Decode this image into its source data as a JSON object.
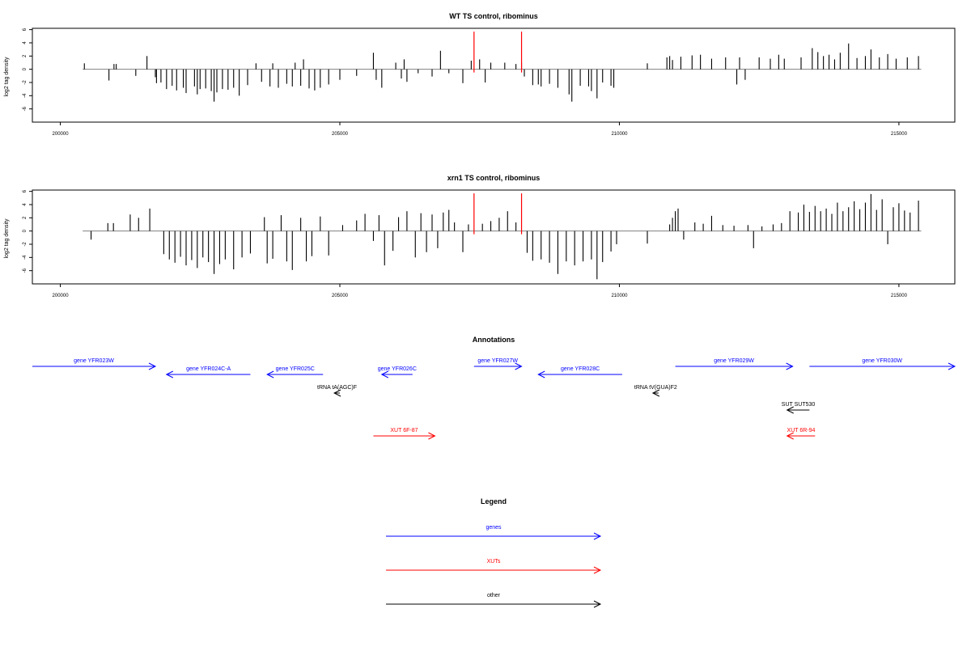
{
  "chart_data": [
    {
      "type": "bar",
      "title": "WT TS control, ribominus",
      "xlabel": "",
      "ylabel": "log2 tag density",
      "xlim": [
        199500,
        216000
      ],
      "ylim": [
        -8,
        6.2
      ],
      "xticks": [
        200000,
        205000,
        210000,
        215000
      ],
      "yticks": [
        -6,
        -4,
        -2,
        0,
        2,
        4,
        6
      ],
      "baseline_range": [
        200400,
        215400
      ],
      "highlights": [
        {
          "x": 207400,
          "value": 5.7,
          "color": "#ff0000"
        },
        {
          "x": 208250,
          "value": 5.7,
          "color": "#ff0000"
        }
      ],
      "series": [
        {
          "color": "#000000",
          "points": [
            [
              200430,
              0.9
            ],
            [
              200870,
              -1.7
            ],
            [
              200960,
              0.8
            ],
            [
              201000,
              0.8
            ],
            [
              201350,
              -1.0
            ],
            [
              201550,
              2.0
            ],
            [
              201700,
              -1.2
            ],
            [
              201720,
              -2.1
            ],
            [
              201800,
              -2.0
            ],
            [
              201900,
              -3.0
            ],
            [
              202000,
              -2.5
            ],
            [
              202080,
              -3.2
            ],
            [
              202200,
              -2.8
            ],
            [
              202250,
              -3.6
            ],
            [
              202400,
              -2.6
            ],
            [
              202450,
              -3.8
            ],
            [
              202500,
              -3.0
            ],
            [
              202600,
              -2.9
            ],
            [
              202700,
              -3.3
            ],
            [
              202750,
              -4.9
            ],
            [
              202800,
              -3.5
            ],
            [
              202900,
              -3.0
            ],
            [
              203000,
              -3.1
            ],
            [
              203100,
              -2.8
            ],
            [
              203200,
              -4.0
            ],
            [
              203350,
              -2.4
            ],
            [
              203500,
              0.9
            ],
            [
              203600,
              -1.9
            ],
            [
              203750,
              -2.6
            ],
            [
              203800,
              0.9
            ],
            [
              203900,
              -2.8
            ],
            [
              204050,
              -2.2
            ],
            [
              204150,
              -2.6
            ],
            [
              204200,
              1.0
            ],
            [
              204300,
              -2.5
            ],
            [
              204350,
              1.5
            ],
            [
              204450,
              -2.9
            ],
            [
              204550,
              -3.2
            ],
            [
              204650,
              -2.8
            ],
            [
              204800,
              -2.3
            ],
            [
              205000,
              -1.6
            ],
            [
              205300,
              -1.0
            ],
            [
              205600,
              2.5
            ],
            [
              205650,
              -1.6
            ],
            [
              205750,
              -2.8
            ],
            [
              206000,
              1.0
            ],
            [
              206100,
              -1.4
            ],
            [
              206150,
              1.5
            ],
            [
              206200,
              -1.9
            ],
            [
              206400,
              -0.6
            ],
            [
              206650,
              -1.1
            ],
            [
              206800,
              2.8
            ],
            [
              206950,
              -0.6
            ],
            [
              207200,
              -2.1
            ],
            [
              207350,
              1.3
            ],
            [
              207500,
              1.5
            ],
            [
              207600,
              -2.0
            ],
            [
              207700,
              1.0
            ],
            [
              207950,
              1.0
            ],
            [
              208150,
              0.8
            ],
            [
              208250,
              1.0
            ],
            [
              208300,
              -1.1
            ],
            [
              208450,
              -2.4
            ],
            [
              208550,
              -2.3
            ],
            [
              208600,
              -2.6
            ],
            [
              208750,
              -2.2
            ],
            [
              208900,
              -2.8
            ],
            [
              209100,
              -3.8
            ],
            [
              209150,
              -4.9
            ],
            [
              209300,
              -2.5
            ],
            [
              209450,
              -2.6
            ],
            [
              209500,
              -3.3
            ],
            [
              209600,
              -4.4
            ],
            [
              209700,
              -2.0
            ],
            [
              209850,
              -2.5
            ],
            [
              209900,
              -2.8
            ],
            [
              210500,
              0.9
            ],
            [
              210850,
              1.8
            ],
            [
              210900,
              2.0
            ],
            [
              210950,
              1.4
            ],
            [
              211100,
              1.9
            ],
            [
              211300,
              2.1
            ],
            [
              211450,
              2.2
            ],
            [
              211650,
              1.6
            ],
            [
              211900,
              1.8
            ],
            [
              212100,
              -2.3
            ],
            [
              212150,
              1.8
            ],
            [
              212250,
              -1.6
            ],
            [
              212500,
              1.8
            ],
            [
              212700,
              1.6
            ],
            [
              212850,
              2.2
            ],
            [
              212950,
              1.6
            ],
            [
              213250,
              1.8
            ],
            [
              213450,
              3.2
            ],
            [
              213550,
              2.6
            ],
            [
              213650,
              2.0
            ],
            [
              213750,
              2.2
            ],
            [
              213850,
              1.5
            ],
            [
              213950,
              2.5
            ],
            [
              214100,
              3.9
            ],
            [
              214250,
              1.7
            ],
            [
              214400,
              2.0
            ],
            [
              214500,
              3.0
            ],
            [
              214650,
              1.8
            ],
            [
              214800,
              2.3
            ],
            [
              214950,
              1.6
            ],
            [
              215150,
              1.8
            ],
            [
              215350,
              2.0
            ]
          ]
        }
      ]
    },
    {
      "type": "bar",
      "title": "xrn1 TS control, ribominus",
      "xlabel": "",
      "ylabel": "log2 tag density",
      "xlim": [
        199500,
        216000
      ],
      "ylim": [
        -8,
        6.2
      ],
      "xticks": [
        200000,
        205000,
        210000,
        215000
      ],
      "yticks": [
        -6,
        -4,
        -2,
        0,
        2,
        4,
        6
      ],
      "baseline_range": [
        200400,
        215400
      ],
      "highlights": [
        {
          "x": 207400,
          "value": 5.7,
          "color": "#ff0000"
        },
        {
          "x": 208250,
          "value": 5.7,
          "color": "#ff0000"
        }
      ],
      "series": [
        {
          "color": "#000000",
          "points": [
            [
              200550,
              -1.3
            ],
            [
              200850,
              1.2
            ],
            [
              200950,
              1.2
            ],
            [
              201250,
              2.5
            ],
            [
              201400,
              2.0
            ],
            [
              201600,
              3.4
            ],
            [
              201850,
              -3.5
            ],
            [
              201950,
              -4.3
            ],
            [
              202050,
              -4.8
            ],
            [
              202150,
              -3.9
            ],
            [
              202250,
              -5.2
            ],
            [
              202350,
              -4.4
            ],
            [
              202450,
              -5.6
            ],
            [
              202550,
              -4.0
            ],
            [
              202650,
              -4.7
            ],
            [
              202750,
              -6.5
            ],
            [
              202850,
              -5.0
            ],
            [
              202950,
              -4.3
            ],
            [
              203100,
              -5.8
            ],
            [
              203250,
              -4.0
            ],
            [
              203400,
              -3.4
            ],
            [
              203650,
              2.1
            ],
            [
              203700,
              -4.9
            ],
            [
              203800,
              -4.2
            ],
            [
              203950,
              2.4
            ],
            [
              204050,
              -4.6
            ],
            [
              204150,
              -5.9
            ],
            [
              204300,
              2.0
            ],
            [
              204400,
              -4.6
            ],
            [
              204500,
              -3.8
            ],
            [
              204650,
              2.2
            ],
            [
              204800,
              -3.7
            ],
            [
              205050,
              0.9
            ],
            [
              205300,
              1.6
            ],
            [
              205450,
              2.6
            ],
            [
              205600,
              -1.5
            ],
            [
              205700,
              2.4
            ],
            [
              205800,
              -5.2
            ],
            [
              205950,
              -3.0
            ],
            [
              206050,
              2.1
            ],
            [
              206200,
              3.0
            ],
            [
              206350,
              -4.0
            ],
            [
              206450,
              2.7
            ],
            [
              206550,
              -3.2
            ],
            [
              206650,
              2.5
            ],
            [
              206750,
              -2.6
            ],
            [
              206850,
              2.8
            ],
            [
              206950,
              3.2
            ],
            [
              207050,
              1.3
            ],
            [
              207200,
              -3.2
            ],
            [
              207300,
              1.0
            ],
            [
              207550,
              1.1
            ],
            [
              207700,
              1.5
            ],
            [
              207850,
              2.0
            ],
            [
              208000,
              3.0
            ],
            [
              208150,
              1.3
            ],
            [
              208350,
              -3.3
            ],
            [
              208450,
              -4.5
            ],
            [
              208600,
              -4.3
            ],
            [
              208750,
              -4.8
            ],
            [
              208900,
              -6.5
            ],
            [
              209050,
              -4.6
            ],
            [
              209200,
              -5.2
            ],
            [
              209350,
              -4.6
            ],
            [
              209500,
              -4.3
            ],
            [
              209600,
              -7.3
            ],
            [
              209700,
              -4.7
            ],
            [
              209850,
              -3.1
            ],
            [
              209950,
              -2.0
            ],
            [
              210500,
              -1.9
            ],
            [
              210900,
              1.0
            ],
            [
              210950,
              2.0
            ],
            [
              211000,
              3.0
            ],
            [
              211050,
              3.4
            ],
            [
              211150,
              -1.3
            ],
            [
              211350,
              1.3
            ],
            [
              211500,
              1.1
            ],
            [
              211650,
              2.3
            ],
            [
              211850,
              0.9
            ],
            [
              212050,
              0.8
            ],
            [
              212300,
              0.9
            ],
            [
              212400,
              -2.6
            ],
            [
              212550,
              0.7
            ],
            [
              212750,
              1.0
            ],
            [
              212900,
              1.2
            ],
            [
              213050,
              3.0
            ],
            [
              213200,
              2.8
            ],
            [
              213300,
              4.0
            ],
            [
              213400,
              2.9
            ],
            [
              213500,
              3.8
            ],
            [
              213600,
              3.0
            ],
            [
              213700,
              3.4
            ],
            [
              213800,
              2.6
            ],
            [
              213900,
              4.3
            ],
            [
              214000,
              3.0
            ],
            [
              214100,
              3.6
            ],
            [
              214200,
              4.5
            ],
            [
              214300,
              3.3
            ],
            [
              214400,
              4.3
            ],
            [
              214500,
              5.6
            ],
            [
              214600,
              3.2
            ],
            [
              214700,
              4.8
            ],
            [
              214800,
              -2.0
            ],
            [
              214900,
              3.6
            ],
            [
              215000,
              4.2
            ],
            [
              215100,
              3.1
            ],
            [
              215200,
              2.8
            ],
            [
              215350,
              4.6
            ]
          ]
        }
      ]
    }
  ],
  "annotations": {
    "title": "Annotations",
    "xlim": [
      199500,
      216000
    ],
    "features": [
      {
        "label": "gene YFR023W",
        "start": 199500,
        "end": 201700,
        "strand": "+",
        "row": 0,
        "category": "gene"
      },
      {
        "label": "gene YFR024C-A",
        "start": 201900,
        "end": 203400,
        "strand": "-",
        "row": 1,
        "category": "gene"
      },
      {
        "label": "gene YFR025C",
        "start": 203700,
        "end": 204700,
        "strand": "-",
        "row": 1,
        "category": "gene"
      },
      {
        "label": "gene YFR026C",
        "start": 205750,
        "end": 206300,
        "strand": "-",
        "row": 1,
        "category": "gene"
      },
      {
        "label": "gene YFR027W",
        "start": 207400,
        "end": 208250,
        "strand": "+",
        "row": 0,
        "category": "gene"
      },
      {
        "label": "gene YFR028C",
        "start": 208550,
        "end": 210050,
        "strand": "-",
        "row": 1,
        "category": "gene"
      },
      {
        "label": "gene YFR029W",
        "start": 211000,
        "end": 213100,
        "strand": "+",
        "row": 0,
        "category": "gene"
      },
      {
        "label": "gene YFR030W",
        "start": 213400,
        "end": 216000,
        "strand": "+",
        "row": 0,
        "category": "gene"
      },
      {
        "label": "tRNA tA(AGC)F",
        "start": 204900,
        "end": 205000,
        "strand": "-",
        "row": 2,
        "category": "other"
      },
      {
        "label": "tRNA tV(GUA)F2",
        "start": 210600,
        "end": 210700,
        "strand": "-",
        "row": 2,
        "category": "other"
      },
      {
        "label": "SUT SUT530",
        "start": 213000,
        "end": 213400,
        "strand": "-",
        "row": 3,
        "category": "other"
      },
      {
        "label": "XUT 6F-87",
        "start": 205600,
        "end": 206700,
        "strand": "+",
        "row": 4,
        "category": "xut"
      },
      {
        "label": "XUT 6R-94",
        "start": 213000,
        "end": 213500,
        "strand": "-",
        "row": 4,
        "category": "xut"
      }
    ]
  },
  "legend": {
    "title": "Legend",
    "items": [
      {
        "label": "genes",
        "color": "#0000ff"
      },
      {
        "label": "XUTs",
        "color": "#ff0000"
      },
      {
        "label": "other",
        "color": "#000000"
      }
    ]
  },
  "colors": {
    "gene": "#0000ff",
    "xut": "#ff0000",
    "other": "#000000",
    "bar": "#000000",
    "baseline": "#808080"
  }
}
